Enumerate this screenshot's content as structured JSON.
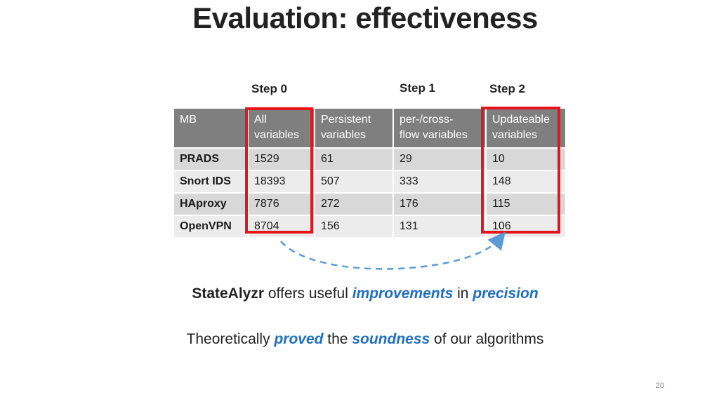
{
  "slide": {
    "title": "Evaluation: effectiveness",
    "page_number": "20"
  },
  "steps": {
    "step0": "Step 0",
    "step1": "Step 1",
    "step2": "Step 2"
  },
  "table": {
    "headers": {
      "mb": "MB",
      "all_line1": "All",
      "all_line2": "variables",
      "persistent_line1": "Persistent",
      "persistent_line2": "variables",
      "flow_line1": "per-/cross-",
      "flow_line2": "flow variables",
      "updateable_line1": "Updateable",
      "updateable_line2": "variables"
    },
    "rows": [
      {
        "name": "PRADS",
        "all": "1529",
        "persistent": "61",
        "flow": "29",
        "updateable": "10"
      },
      {
        "name": "Snort IDS",
        "all": "18393",
        "persistent": "507",
        "flow": "333",
        "updateable": "148"
      },
      {
        "name": "HAproxy",
        "all": "7876",
        "persistent": "272",
        "flow": "176",
        "updateable": "115"
      },
      {
        "name": "OpenVPN",
        "all": "8704",
        "persistent": "156",
        "flow": "131",
        "updateable": "106"
      }
    ]
  },
  "highlight_color": "#e8141b",
  "accent_color": "#1f6fbf",
  "statement1": {
    "tool": "StateAlyzr",
    "middle": " offers useful ",
    "em1": "improvements",
    "connector": " in ",
    "em2": "precision"
  },
  "statement2": {
    "start": "Theoretically ",
    "em1": "proved",
    "middle": " the ",
    "em2": "soundness",
    "end": " of our algorithms"
  }
}
